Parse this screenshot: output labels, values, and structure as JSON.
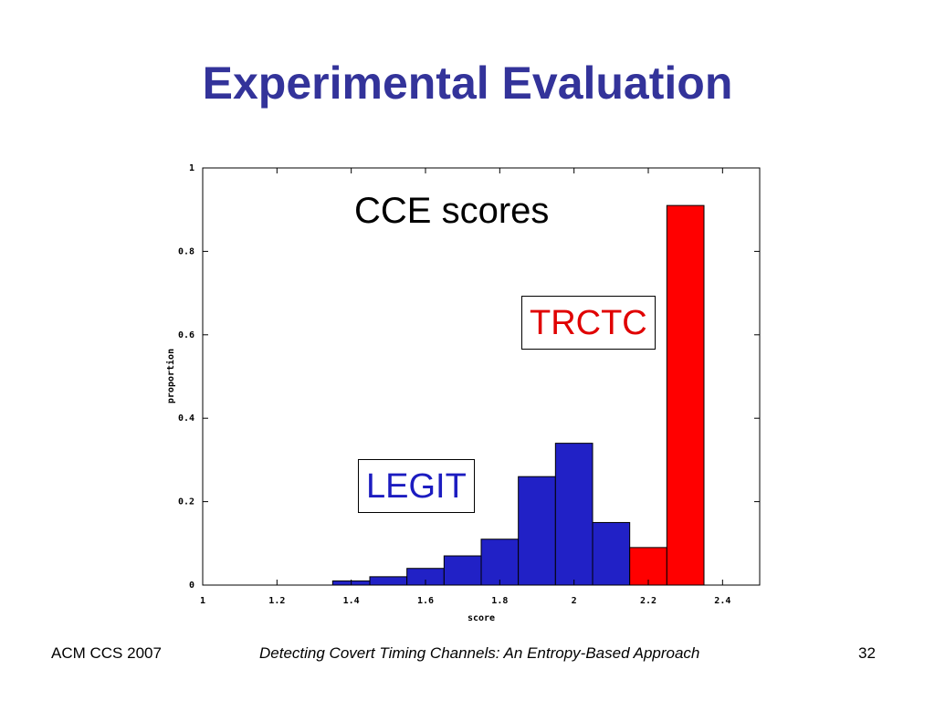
{
  "slide": {
    "title": "Experimental Evaluation",
    "footer_left": "ACM CCS 2007",
    "footer_center": "Detecting Covert Timing Channels: An Entropy-Based Approach",
    "page_number": "32"
  },
  "chart_data": {
    "type": "bar",
    "title": "CCE scores",
    "xlabel": "score",
    "ylabel": "proportion",
    "xlim": [
      1,
      2.5
    ],
    "ylim": [
      0,
      1
    ],
    "x_ticks": [
      {
        "value": 1,
        "label": "1"
      },
      {
        "value": 1.2,
        "label": "1.2"
      },
      {
        "value": 1.4,
        "label": "1.4"
      },
      {
        "value": 1.6,
        "label": "1.6"
      },
      {
        "value": 1.8,
        "label": "1.8"
      },
      {
        "value": 2,
        "label": "2"
      },
      {
        "value": 2.2,
        "label": "2.2"
      },
      {
        "value": 2.4,
        "label": "2.4"
      }
    ],
    "y_ticks": [
      {
        "value": 0,
        "label": "0"
      },
      {
        "value": 0.2,
        "label": "0.2"
      },
      {
        "value": 0.4,
        "label": "0.4"
      },
      {
        "value": 0.6,
        "label": "0.6"
      },
      {
        "value": 0.8,
        "label": "0.8"
      },
      {
        "value": 1,
        "label": "1"
      }
    ],
    "series": [
      {
        "name": "LEGIT",
        "color": "#2121c6",
        "bins": [
          {
            "x0": 1.35,
            "x1": 1.45,
            "value": 0.01
          },
          {
            "x0": 1.45,
            "x1": 1.55,
            "value": 0.02
          },
          {
            "x0": 1.55,
            "x1": 1.65,
            "value": 0.04
          },
          {
            "x0": 1.65,
            "x1": 1.75,
            "value": 0.07
          },
          {
            "x0": 1.75,
            "x1": 1.85,
            "value": 0.11
          },
          {
            "x0": 1.85,
            "x1": 1.95,
            "value": 0.26
          },
          {
            "x0": 1.95,
            "x1": 2.05,
            "value": 0.34
          },
          {
            "x0": 2.05,
            "x1": 2.15,
            "value": 0.15
          }
        ]
      },
      {
        "name": "TRCTC",
        "color": "#ff0000",
        "bins": [
          {
            "x0": 2.15,
            "x1": 2.25,
            "value": 0.09
          },
          {
            "x0": 2.25,
            "x1": 2.35,
            "value": 0.91
          }
        ]
      }
    ],
    "grid": false
  }
}
